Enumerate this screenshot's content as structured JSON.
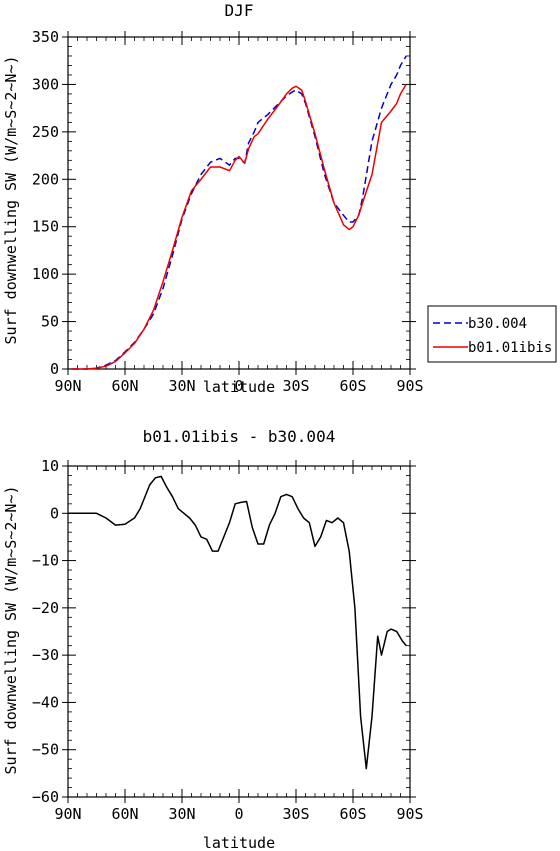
{
  "chart_data": [
    {
      "type": "line",
      "title": "DJF",
      "xlabel": "",
      "ylabel": "Surf downwelling SW (W/m~S~2~N~)",
      "xlim": [
        -90,
        90
      ],
      "ylim": [
        0,
        350
      ],
      "x_tick_values": [
        -90,
        -60,
        -30,
        0,
        30,
        60,
        90
      ],
      "x_tick_labels": [
        "90N",
        "60N",
        "30N",
        "0",
        "30S",
        "60S",
        "90S"
      ],
      "y_tick_values": [
        0,
        50,
        100,
        150,
        200,
        250,
        300,
        350
      ],
      "y_tick_labels": [
        "0",
        "50",
        "100",
        "150",
        "200",
        "250",
        "300",
        "350"
      ],
      "legend_position": "right",
      "series": [
        {
          "name": "b30.004",
          "color": "#0000cc",
          "dash": "dashed",
          "x": [
            -88,
            -80,
            -75,
            -70,
            -65,
            -60,
            -55,
            -50,
            -45,
            -40,
            -35,
            -30,
            -25,
            -20,
            -15,
            -10,
            -5,
            -2,
            0,
            3,
            5,
            8,
            10,
            15,
            20,
            25,
            28,
            30,
            33,
            35,
            40,
            45,
            50,
            55,
            58,
            60,
            63,
            65,
            70,
            75,
            80,
            83,
            85,
            88
          ],
          "y": [
            0,
            0,
            1,
            4,
            9,
            18,
            28,
            42,
            58,
            85,
            120,
            158,
            185,
            205,
            218,
            222,
            215,
            222,
            222,
            217,
            238,
            250,
            260,
            268,
            278,
            288,
            292,
            294,
            290,
            280,
            245,
            205,
            175,
            162,
            155,
            155,
            162,
            180,
            240,
            275,
            300,
            310,
            320,
            330
          ]
        },
        {
          "name": "b01.01ibis",
          "color": "#ee0000",
          "dash": "solid",
          "x": [
            -88,
            -80,
            -75,
            -70,
            -65,
            -60,
            -55,
            -50,
            -45,
            -40,
            -35,
            -30,
            -25,
            -20,
            -15,
            -10,
            -5,
            -2,
            0,
            3,
            5,
            8,
            10,
            15,
            20,
            25,
            28,
            30,
            33,
            35,
            40,
            45,
            50,
            55,
            58,
            60,
            63,
            65,
            70,
            75,
            80,
            83,
            85,
            88
          ],
          "y": [
            0,
            0,
            1,
            3,
            8,
            17,
            27,
            42,
            62,
            92,
            125,
            160,
            188,
            200,
            213,
            213,
            209,
            220,
            224,
            217,
            232,
            245,
            248,
            263,
            276,
            290,
            296,
            298,
            294,
            282,
            248,
            210,
            175,
            152,
            147,
            150,
            162,
            175,
            205,
            260,
            272,
            280,
            290,
            300
          ]
        }
      ]
    },
    {
      "type": "line",
      "title": "b01.01ibis - b30.004",
      "xlabel": "latitude",
      "ylabel": "Surf downwelling SW (W/m~S~2~N~)",
      "xlim": [
        -90,
        90
      ],
      "ylim": [
        -60,
        10
      ],
      "x_tick_values": [
        -90,
        -60,
        -30,
        0,
        30,
        60,
        90
      ],
      "x_tick_labels": [
        "90N",
        "60N",
        "30N",
        "0",
        "30S",
        "60S",
        "90S"
      ],
      "y_tick_values": [
        -60,
        -50,
        -40,
        -30,
        -20,
        -10,
        0,
        10
      ],
      "y_tick_labels": [
        "-60",
        "-50",
        "-40",
        "-30",
        "-20",
        "-10",
        "0",
        "10"
      ],
      "series": [
        {
          "name": "",
          "color": "#000000",
          "dash": "solid",
          "x": [
            -90,
            -75,
            -70,
            -65,
            -60,
            -55,
            -52,
            -49,
            -47,
            -44,
            -41,
            -38,
            -35,
            -32,
            -29,
            -26,
            -23,
            -20,
            -17,
            -14,
            -11,
            -8,
            -5,
            -2,
            1,
            4,
            7,
            10,
            13,
            16,
            19,
            22,
            25,
            28,
            31,
            34,
            37,
            40,
            43,
            46,
            49,
            52,
            55,
            58,
            61,
            64,
            67,
            70,
            73,
            75,
            78,
            80,
            83,
            86,
            88
          ],
          "y": [
            0,
            0,
            -1,
            -2.5,
            -2.3,
            -1,
            1,
            4,
            6,
            7.5,
            7.8,
            5.5,
            3.5,
            1,
            0,
            -1,
            -2.5,
            -5,
            -5.5,
            -8,
            -8,
            -5,
            -2,
            2,
            2.3,
            2.5,
            -3,
            -6.5,
            -6.5,
            -2.5,
            0,
            3.5,
            4,
            3.5,
            1,
            -1,
            -2,
            -7,
            -5,
            -1.5,
            -2,
            -1,
            -2,
            -8,
            -20,
            -43,
            -54,
            -43,
            -26,
            -30,
            -25,
            -24.5,
            -25,
            -27,
            -28
          ]
        }
      ]
    }
  ],
  "panels": [
    {
      "title": "DJF",
      "ylabel": "Surf downwelling SW (W/m~S~2~N~)",
      "xlabel": "latitude"
    },
    {
      "title": "b01.01ibis - b30.004",
      "ylabel": "Surf downwelling SW (W/m~S~2~N~)",
      "xlabel": "latitude"
    }
  ]
}
